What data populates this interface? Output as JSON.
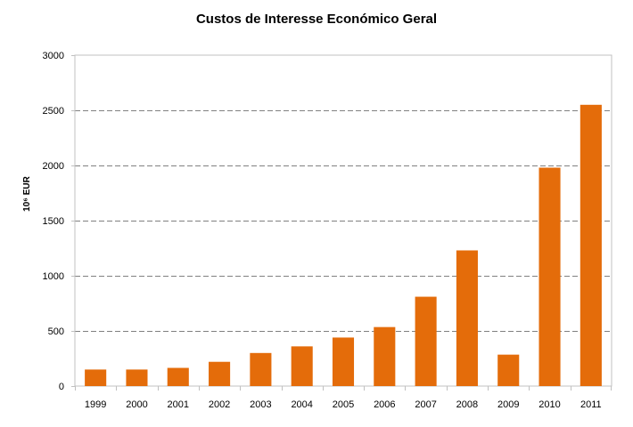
{
  "chart_data": {
    "type": "bar",
    "title": "Custos de Interesse Económico Geral",
    "xlabel": "",
    "ylabel": "10⁶ EUR",
    "categories": [
      "1999",
      "2000",
      "2001",
      "2002",
      "2003",
      "2004",
      "2005",
      "2006",
      "2007",
      "2008",
      "2009",
      "2010",
      "2011"
    ],
    "values": [
      150,
      150,
      165,
      220,
      300,
      360,
      440,
      535,
      810,
      1230,
      285,
      1980,
      2550
    ],
    "ylim": [
      0,
      3000
    ],
    "yticks": [
      0,
      500,
      1000,
      1500,
      2000,
      2500,
      3000
    ],
    "ytick_labels": [
      "0",
      "500",
      "1000",
      "1500",
      "2000",
      "2500",
      "3000"
    ],
    "grid": "y-dashed",
    "legend": "none",
    "bar_color": "#e46c0a",
    "grid_color": "#808080",
    "axis_color": "#c0c0c0"
  }
}
